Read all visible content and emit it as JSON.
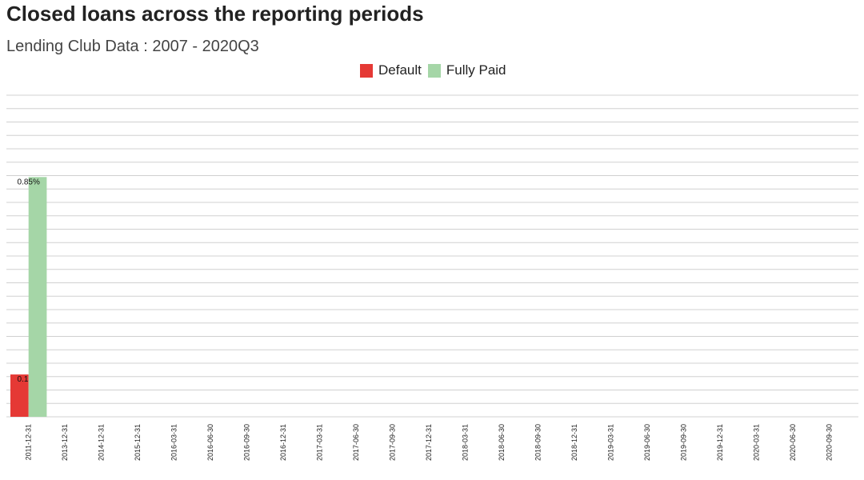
{
  "chart_data": {
    "type": "bar",
    "title": "Closed loans across the reporting periods",
    "subtitle": "Lending Club Data : 2007 - 2020Q3",
    "categories": [
      "2011-12-31",
      "2013-12-31",
      "2014-12-31",
      "2015-12-31",
      "2016-03-31",
      "2016-06-30",
      "2016-09-30",
      "2016-12-31",
      "2017-03-31",
      "2017-06-30",
      "2017-09-30",
      "2017-12-31",
      "2018-03-31",
      "2018-06-30",
      "2018-09-30",
      "2018-12-31",
      "2019-03-31",
      "2019-06-30",
      "2019-09-30",
      "2019-12-31",
      "2020-03-31",
      "2020-06-30",
      "2020-09-30"
    ],
    "series": [
      {
        "name": "Default",
        "color": "#e53935",
        "values": [
          0.15,
          0,
          0,
          0,
          0,
          0,
          0,
          0,
          0,
          0,
          0,
          0,
          0,
          0,
          0,
          0,
          0,
          0,
          0,
          0,
          0,
          0,
          0
        ],
        "labels": [
          "0.15%"
        ]
      },
      {
        "name": "Fully Paid",
        "color": "#a5d6a7",
        "values": [
          0.85,
          0,
          0,
          0,
          0,
          0,
          0,
          0,
          0,
          0,
          0,
          0,
          0,
          0,
          0,
          0,
          0,
          0,
          0,
          0,
          0,
          0,
          0
        ],
        "labels": [
          "0.85%"
        ]
      }
    ],
    "ylim": [
      0,
      1
    ],
    "grid": true,
    "legend_position": "top-center"
  }
}
